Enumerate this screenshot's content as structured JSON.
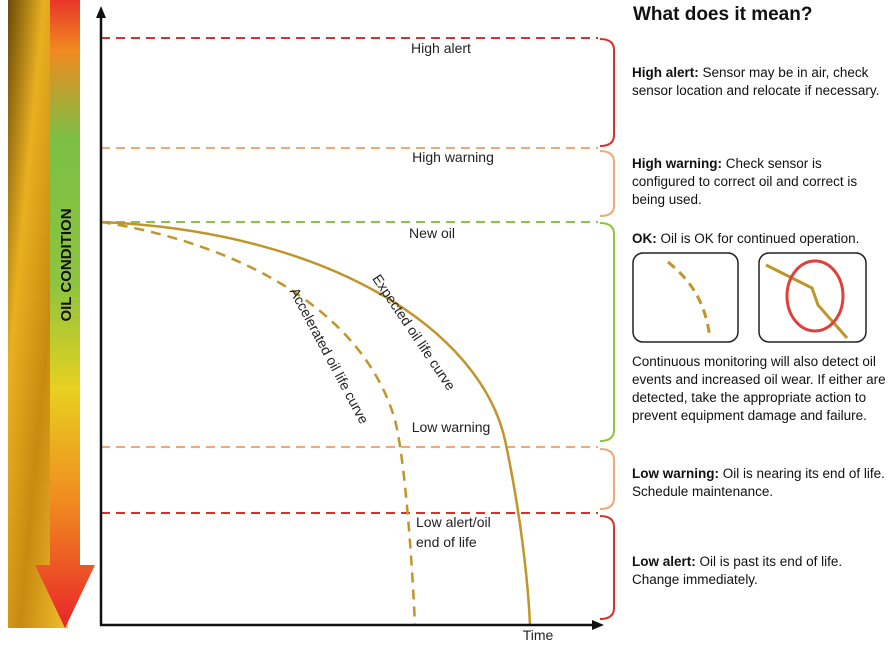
{
  "diagram": {
    "side_label": "OIL CONDITION",
    "x_axis_label": "Time",
    "zones": [
      {
        "label": [
          "High alert"
        ]
      },
      {
        "label": [
          "High warning"
        ]
      },
      {
        "label": [
          "New oil"
        ]
      },
      {
        "label": [
          "Low warning"
        ]
      },
      {
        "label": [
          "Low alert/oil",
          "end of life"
        ]
      }
    ],
    "curves": {
      "expected": "Expected oil life curve",
      "accelerated": "Accelerated oil life curve"
    }
  },
  "panel": {
    "title": "What does it mean?",
    "items": [
      {
        "term": "High alert:",
        "text": "Sensor may be in air, check sensor location and relocate if necessary."
      },
      {
        "term": "High warning:",
        "text": "Check sensor is configured to correct oil and correct is being used."
      },
      {
        "term": "OK:",
        "text": "Oil is OK for continued operation."
      },
      {
        "term": "Low warning:",
        "text": "Oil is nearing its end of life. Schedule maintenance."
      },
      {
        "term": "Low alert:",
        "text": "Oil is past its end of life. Change immediately."
      }
    ],
    "note": "Continuous monitoring will also detect oil events and increased oil wear. If either are detected, take the appropriate action to prevent equipment damage and failure."
  }
}
